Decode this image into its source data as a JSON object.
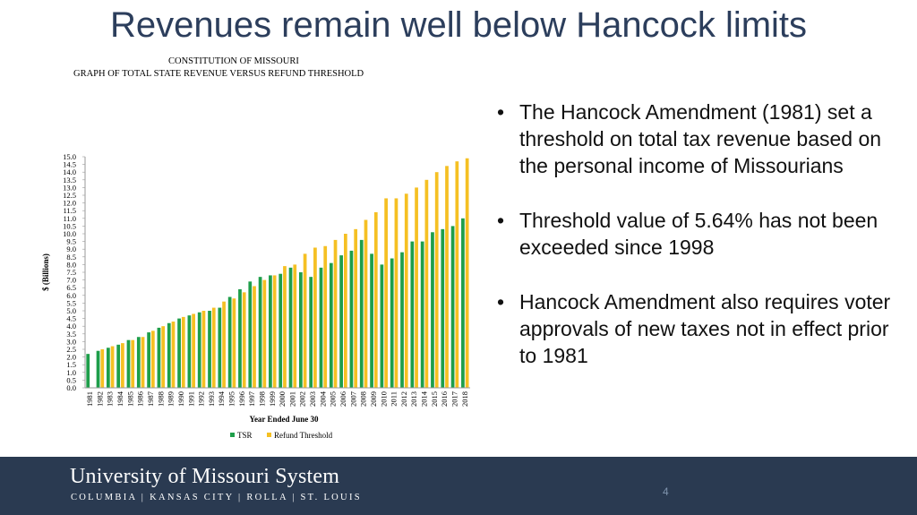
{
  "slide": {
    "title": "Revenues remain well below Hancock limits",
    "bullets": [
      "The Hancock Amendment (1981) set a threshold on total tax revenue based on the personal income of Missourians",
      "Threshold value of 5.64% has not been exceeded since 1998",
      "Hancock Amendment also requires voter approvals of new taxes not in effect prior to 1981"
    ],
    "footer": {
      "university": "University of Missouri System",
      "campuses": "COLUMBIA | KANSAS CITY | ROLLA | ST. LOUIS",
      "page_number": "4"
    }
  },
  "chart_data": {
    "type": "bar",
    "title_line1": "CONSTITUTION OF MISSOURI",
    "title_line2": "GRAPH OF TOTAL STATE REVENUE VERSUS REFUND THRESHOLD",
    "xlabel": "Year Ended June 30",
    "ylabel": "$ (Billions)",
    "ylim": [
      0,
      15
    ],
    "ytick_step": 0.5,
    "grid": false,
    "legend_position": "bottom",
    "colors": {
      "tsr": "#1e9e4a",
      "threshold": "#f5c023"
    },
    "categories": [
      "1981",
      "1982",
      "1983",
      "1984",
      "1985",
      "1986",
      "1987",
      "1988",
      "1989",
      "1990",
      "1991",
      "1992",
      "1993",
      "1994",
      "1995",
      "1996",
      "1997",
      "1998",
      "1999",
      "2000",
      "2001",
      "2002",
      "2003",
      "2004",
      "2005",
      "2006",
      "2007",
      "2008",
      "2009",
      "2010",
      "2011",
      "2012",
      "2013",
      "2014",
      "2015",
      "2016",
      "2017",
      "2018"
    ],
    "series": [
      {
        "name": "TSR",
        "values": [
          2.2,
          2.4,
          2.6,
          2.8,
          3.1,
          3.3,
          3.6,
          3.9,
          4.2,
          4.5,
          4.7,
          4.9,
          5.0,
          5.2,
          5.9,
          6.4,
          6.9,
          7.2,
          7.3,
          7.4,
          7.8,
          7.5,
          7.2,
          7.8,
          8.1,
          8.6,
          8.9,
          9.6,
          8.7,
          8.0,
          8.4,
          8.8,
          9.5,
          9.5,
          10.1,
          10.3,
          10.5,
          11.0
        ]
      },
      {
        "name": "Refund Threshold",
        "values": [
          null,
          2.5,
          2.7,
          2.9,
          3.1,
          3.3,
          3.7,
          4.0,
          4.3,
          4.6,
          4.8,
          5.0,
          5.2,
          5.6,
          5.8,
          6.2,
          6.6,
          7.0,
          7.3,
          7.9,
          8.0,
          8.7,
          9.1,
          9.2,
          9.6,
          10.0,
          10.3,
          10.9,
          11.4,
          12.3,
          12.3,
          12.6,
          13.0,
          13.5,
          14.0,
          14.4,
          14.7,
          14.9
        ]
      }
    ]
  }
}
